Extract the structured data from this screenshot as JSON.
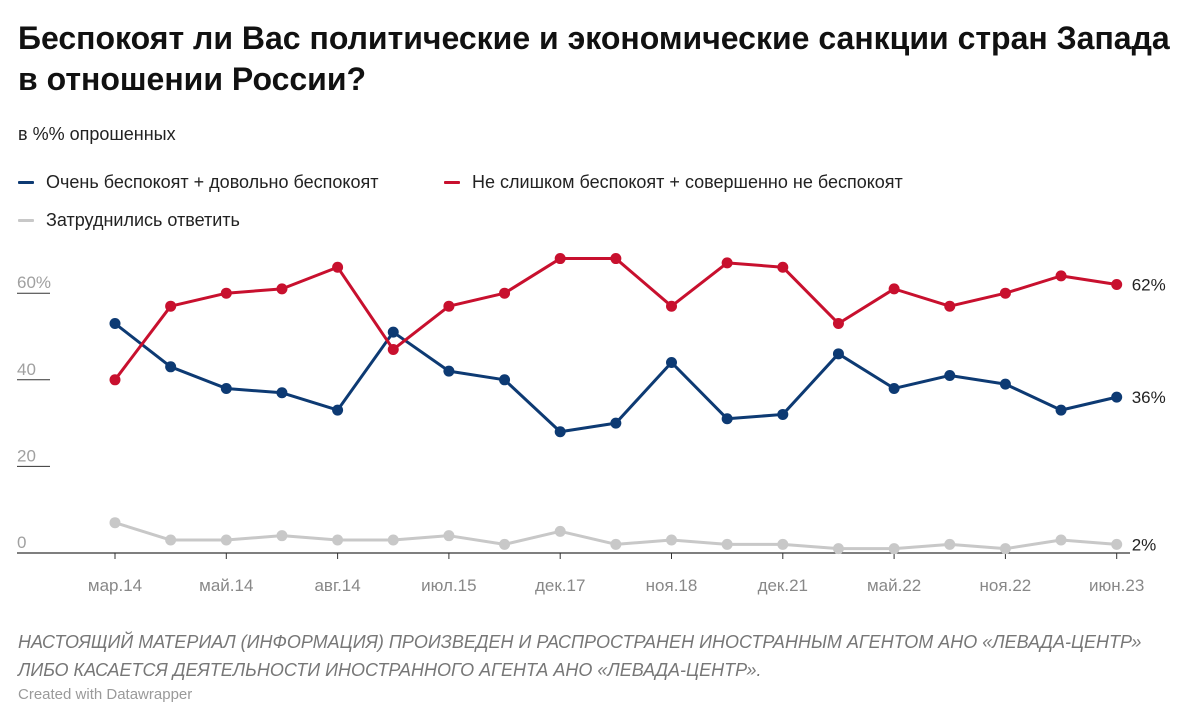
{
  "header": {
    "title": "Беспокоят ли Вас политические и экономические санкции стран Запада в отношении России?",
    "subtitle": "в %% опрошенных"
  },
  "footer": {
    "note": "НАСТОЯЩИЙ МАТЕРИАЛ (ИНФОРМАЦИЯ) ПРОИЗВЕДЕН И РАСПРОСТРАНЕН ИНОСТРАННЫМ АГЕНТОМ АНО «ЛЕВАДА-ЦЕНТР» ЛИБО КАСАЕТСЯ ДЕЯТЕЛЬНОСТИ ИНОСТРАННОГО АГЕНТА АНО «ЛЕВАДА-ЦЕНТР».",
    "credit": "Created with Datawrapper"
  },
  "chart_data": {
    "type": "line",
    "title": "Беспокоят ли Вас политические и экономические санкции стран Запада в отношении России?",
    "subtitle": "в %% опрошенных",
    "x_tick_labels": [
      "мар.14",
      "май.14",
      "авг.14",
      "июл.15",
      "дек.17",
      "ноя.18",
      "дек.21",
      "май.22",
      "ноя.22",
      "июн.23"
    ],
    "x_tick_indices": [
      0,
      2,
      4,
      6,
      8,
      10,
      12,
      14,
      16,
      18
    ],
    "y_tick_labels": [
      "60%",
      "40",
      "20",
      "0"
    ],
    "y_ticks": [
      60,
      40,
      20,
      0
    ],
    "ylim": [
      0,
      65
    ],
    "grid": false,
    "legend_position": "top-left",
    "series": [
      {
        "name": "Очень беспокоят + довольно беспокоят",
        "color": "#0d3a73",
        "values": [
          53,
          43,
          38,
          37,
          33,
          51,
          42,
          40,
          28,
          30,
          44,
          31,
          32,
          46,
          38,
          41,
          39,
          33,
          36
        ],
        "end_label": "36%"
      },
      {
        "name": "Не слишком беспокоят + совершенно не беспокоят",
        "color": "#c8102e",
        "values": [
          40,
          57,
          60,
          61,
          66,
          47,
          57,
          60,
          68,
          68,
          57,
          67,
          66,
          53,
          61,
          57,
          60,
          64,
          62
        ],
        "end_label": "62%"
      },
      {
        "name": "Затруднились ответить",
        "color": "#c8c8c8",
        "values": [
          7,
          3,
          3,
          4,
          3,
          3,
          4,
          2,
          5,
          2,
          3,
          2,
          2,
          1,
          1,
          2,
          1,
          3,
          2
        ],
        "end_label": "2%"
      }
    ]
  }
}
